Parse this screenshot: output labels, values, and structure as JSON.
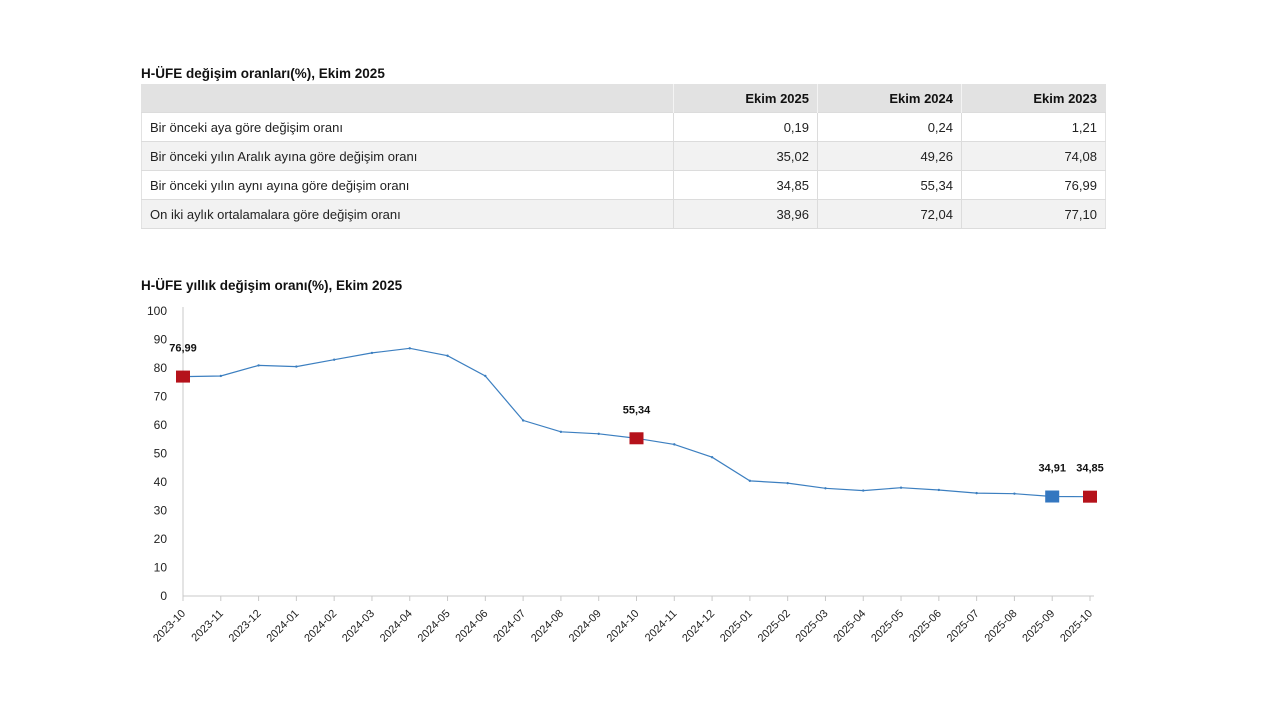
{
  "table": {
    "title": "H-ÜFE değişim oranları(%), Ekim 2025",
    "headers": [
      "",
      "Ekim 2025",
      "Ekim 2024",
      "Ekim 2023"
    ],
    "rows": [
      {
        "label": "Bir önceki aya göre değişim oranı",
        "values": [
          "0,19",
          "0,24",
          "1,21"
        ]
      },
      {
        "label": "Bir önceki yılın Aralık ayına göre değişim oranı",
        "values": [
          "35,02",
          "49,26",
          "74,08"
        ]
      },
      {
        "label": "Bir önceki yılın aynı ayına göre değişim oranı",
        "values": [
          "34,85",
          "55,34",
          "76,99"
        ]
      },
      {
        "label": "On iki aylık ortalamalara göre değişim oranı",
        "values": [
          "38,96",
          "72,04",
          "77,10"
        ]
      }
    ]
  },
  "chart_data": {
    "type": "line",
    "title": "H-ÜFE yıllık değişim oranı(%), Ekim 2025",
    "xlabel": "",
    "ylabel": "",
    "ylim": [
      0,
      100
    ],
    "yticks": [
      0,
      10,
      20,
      30,
      40,
      50,
      60,
      70,
      80,
      90,
      100
    ],
    "x": [
      "2023-10",
      "2023-11",
      "2023-12",
      "2024-01",
      "2024-02",
      "2024-03",
      "2024-04",
      "2024-05",
      "2024-06",
      "2024-07",
      "2024-08",
      "2024-09",
      "2024-10",
      "2024-11",
      "2024-12",
      "2025-01",
      "2025-02",
      "2025-03",
      "2025-04",
      "2025-05",
      "2025-06",
      "2025-07",
      "2025-08",
      "2025-09",
      "2025-10"
    ],
    "series": [
      {
        "values": [
          76.99,
          77.2,
          80.9,
          80.5,
          82.9,
          85.3,
          86.9,
          84.3,
          77.2,
          61.6,
          57.6,
          56.9,
          55.34,
          53.2,
          48.7,
          40.4,
          39.6,
          37.8,
          37.0,
          38.0,
          37.2,
          36.1,
          35.9,
          34.91,
          34.85
        ],
        "color": "#3c7fc0"
      }
    ],
    "markers": [
      {
        "index": 0,
        "label": "76,99",
        "color": "#b5121b"
      },
      {
        "index": 12,
        "label": "55,34",
        "color": "#b5121b"
      },
      {
        "index": 23,
        "label": "34,91",
        "color": "#3477c0"
      },
      {
        "index": 24,
        "label": "34,85",
        "color": "#b5121b"
      }
    ],
    "grid": false,
    "legend": "none"
  }
}
